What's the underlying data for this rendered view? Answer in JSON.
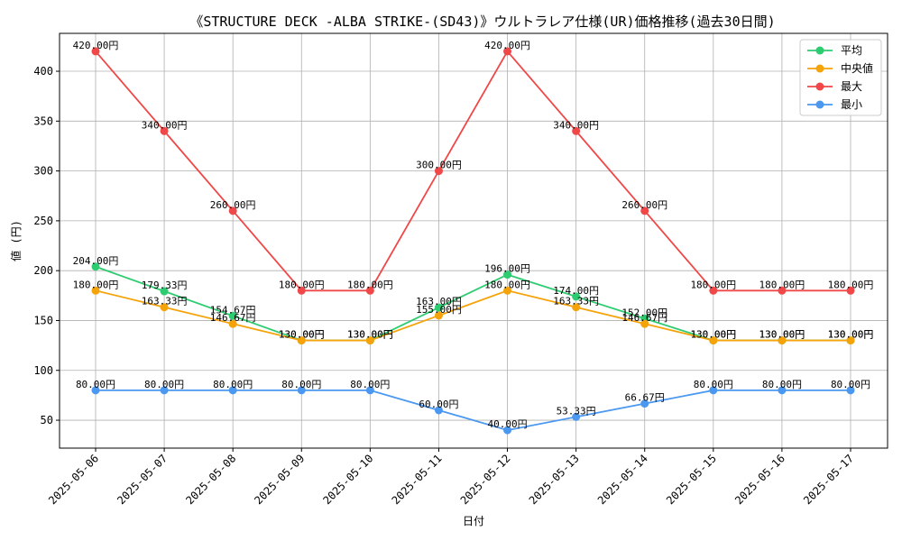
{
  "chart_data": {
    "type": "line",
    "title": "《STRUCTURE DECK -ALBA STRIKE-(SD43)》ウルトラレア仕様(UR)価格推移(過去30日間)",
    "xlabel": "日付",
    "ylabel": "値 (円)",
    "categories": [
      "2025-05-06",
      "2025-05-07",
      "2025-05-08",
      "2025-05-09",
      "2025-05-10",
      "2025-05-11",
      "2025-05-12",
      "2025-05-13",
      "2025-05-14",
      "2025-05-15",
      "2025-05-16",
      "2025-05-17"
    ],
    "ylim": [
      22,
      438
    ],
    "yticks": [
      50,
      100,
      150,
      200,
      250,
      300,
      350,
      400
    ],
    "grid": true,
    "legend_position": "top-right",
    "value_suffix": "円",
    "series": [
      {
        "name": "平均",
        "color": "#2ecc71",
        "values": [
          204.0,
          179.33,
          154.67,
          130.0,
          130.0,
          163.0,
          196.0,
          174.0,
          152.0,
          130.0,
          130.0,
          130.0
        ]
      },
      {
        "name": "中央値",
        "color": "#f5a30a",
        "values": [
          180.0,
          163.33,
          146.67,
          130.0,
          130.0,
          155.0,
          180.0,
          163.33,
          146.67,
          130.0,
          130.0,
          130.0
        ]
      },
      {
        "name": "最大",
        "color": "#f04848",
        "values": [
          420.0,
          340.0,
          260.0,
          180.0,
          180.0,
          300.0,
          420.0,
          340.0,
          260.0,
          180.0,
          180.0,
          180.0
        ]
      },
      {
        "name": "最小",
        "color": "#4a98f0",
        "values": [
          80.0,
          80.0,
          80.0,
          80.0,
          80.0,
          60.0,
          40.0,
          53.33,
          66.67,
          80.0,
          80.0,
          80.0
        ]
      }
    ]
  }
}
